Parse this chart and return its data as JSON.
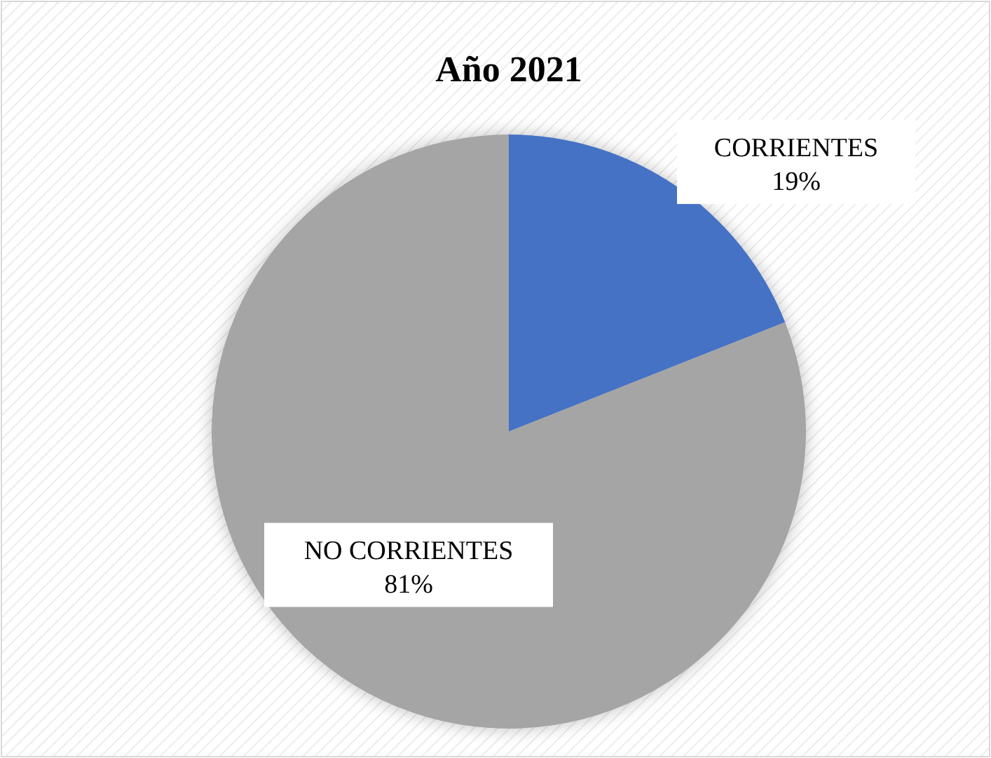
{
  "chart_data": {
    "type": "pie",
    "title": "Año 2021",
    "categories": [
      "CORRIENTES",
      "NO CORRIENTES"
    ],
    "values": [
      19,
      81
    ],
    "colors": [
      "#4472c4",
      "#a5a5a5"
    ],
    "value_labels": [
      "19%",
      "81%"
    ]
  }
}
